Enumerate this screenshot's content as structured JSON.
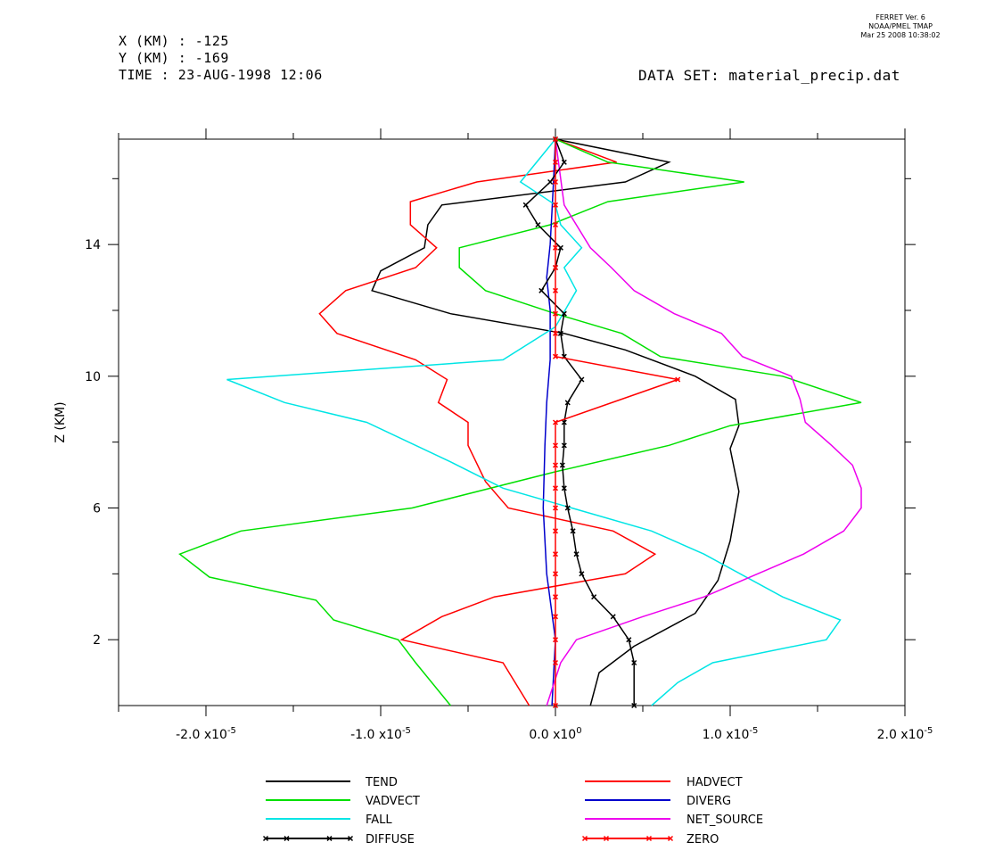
{
  "header": {
    "x_line": "X (KM) : -125",
    "y_line": "Y (KM) : -169",
    "time_line": "TIME : 23-AUG-1998 12:06",
    "dataset_line": "DATA SET: material_precip.dat"
  },
  "stamp": {
    "line1": "FERRET Ver. 6",
    "line2": "NOAA/PMEL TMAP",
    "line3": "Mar 25 2008 10:38:02"
  },
  "chart_data": {
    "type": "line",
    "title": "",
    "xlabel": "",
    "ylabel": "Z (KM)",
    "xlim": [
      -2.5e-05,
      2e-05
    ],
    "ylim": [
      0.0,
      17.2
    ],
    "x_ticks": [
      {
        "value": -2e-05,
        "mantissa": "-2.0",
        "exp": "-5"
      },
      {
        "value": -1e-05,
        "mantissa": "-1.0",
        "exp": "-5"
      },
      {
        "value": 0.0,
        "mantissa": "0.0",
        "exp": "0"
      },
      {
        "value": 1e-05,
        "mantissa": "1.0",
        "exp": "-5"
      },
      {
        "value": 2e-05,
        "mantissa": "2.0",
        "exp": "-5"
      }
    ],
    "y_ticks": [
      {
        "value": 2,
        "label": "2"
      },
      {
        "value": 6,
        "label": "6"
      },
      {
        "value": 10,
        "label": "10"
      },
      {
        "value": 14,
        "label": "14"
      }
    ],
    "x_minor_ticks": [
      -2.5e-05,
      -1.5e-05,
      -5e-06,
      5e-06,
      1.5e-05
    ],
    "y_minor_ticks": [
      4,
      8,
      12,
      16
    ],
    "grid": false,
    "legend_placement": "bottom",
    "series": [
      {
        "name": "TEND",
        "color": "#000000",
        "marker": false,
        "points": [
          [
            2e-06,
            0.0
          ],
          [
            2.5e-06,
            1.0
          ],
          [
            4.5e-06,
            1.8
          ],
          [
            8e-06,
            2.8
          ],
          [
            9.3e-06,
            3.8
          ],
          [
            1e-05,
            5.0
          ],
          [
            1.05e-05,
            6.5
          ],
          [
            1e-05,
            7.8
          ],
          [
            1.05e-05,
            8.5
          ],
          [
            1.03e-05,
            9.3
          ],
          [
            8e-06,
            10.0
          ],
          [
            4e-06,
            10.8
          ],
          [
            5e-07,
            11.3
          ],
          [
            -6e-06,
            11.9
          ],
          [
            -1.05e-05,
            12.6
          ],
          [
            -1e-05,
            13.2
          ],
          [
            -7.5e-06,
            13.9
          ],
          [
            -7.3e-06,
            14.6
          ],
          [
            -6.5e-06,
            15.2
          ],
          [
            4e-06,
            15.9
          ],
          [
            6.5e-06,
            16.5
          ],
          [
            0.0,
            17.2
          ]
        ]
      },
      {
        "name": "HADVECT",
        "color": "#ff0000",
        "marker": false,
        "points": [
          [
            -1.5e-06,
            0.0
          ],
          [
            -3e-06,
            1.3
          ],
          [
            -8.8e-06,
            2.0
          ],
          [
            -6.5e-06,
            2.7
          ],
          [
            -3.5e-06,
            3.3
          ],
          [
            4e-06,
            4.0
          ],
          [
            5.7e-06,
            4.6
          ],
          [
            3.3e-06,
            5.3
          ],
          [
            -2.7e-06,
            6.0
          ],
          [
            -4e-06,
            6.8
          ],
          [
            -5e-06,
            7.9
          ],
          [
            -5e-06,
            8.6
          ],
          [
            -6.7e-06,
            9.2
          ],
          [
            -6.2e-06,
            9.9
          ],
          [
            -8e-06,
            10.5
          ],
          [
            -1.25e-05,
            11.3
          ],
          [
            -1.35e-05,
            11.9
          ],
          [
            -1.2e-05,
            12.6
          ],
          [
            -8e-06,
            13.3
          ],
          [
            -6.8e-06,
            13.9
          ],
          [
            -8.3e-06,
            14.6
          ],
          [
            -8.3e-06,
            15.3
          ],
          [
            -4.5e-06,
            15.9
          ],
          [
            3.5e-06,
            16.5
          ],
          [
            0.0,
            17.2
          ]
        ]
      },
      {
        "name": "VADVECT",
        "color": "#00e000",
        "marker": false,
        "points": [
          [
            -6e-06,
            0.0
          ],
          [
            -8e-06,
            1.3
          ],
          [
            -9e-06,
            2.0
          ],
          [
            -1.27e-05,
            2.6
          ],
          [
            -1.37e-05,
            3.2
          ],
          [
            -1.98e-05,
            3.9
          ],
          [
            -2.15e-05,
            4.6
          ],
          [
            -1.8e-05,
            5.3
          ],
          [
            -8.2e-06,
            6.0
          ],
          [
            0.0,
            7.1
          ],
          [
            6.5e-06,
            7.9
          ],
          [
            1e-05,
            8.5
          ],
          [
            1.75e-05,
            9.2
          ],
          [
            1.3e-05,
            10.0
          ],
          [
            6e-06,
            10.6
          ],
          [
            3.8e-06,
            11.3
          ],
          [
            0.0,
            11.9
          ],
          [
            -4e-06,
            12.6
          ],
          [
            -5.5e-06,
            13.3
          ],
          [
            -5.5e-06,
            13.9
          ],
          [
            -3e-07,
            14.6
          ],
          [
            3e-06,
            15.3
          ],
          [
            1.08e-05,
            15.9
          ],
          [
            3e-06,
            16.5
          ],
          [
            0.0,
            17.2
          ]
        ]
      },
      {
        "name": "DIVERG",
        "color": "#0000cc",
        "marker": false,
        "points": [
          [
            -2e-07,
            0.0
          ],
          [
            0.0,
            2.0
          ],
          [
            -5e-07,
            4.0
          ],
          [
            -7e-07,
            6.0
          ],
          [
            -6e-07,
            7.9
          ],
          [
            -5e-07,
            9.2
          ],
          [
            -3e-07,
            10.5
          ],
          [
            -3e-07,
            12.0
          ],
          [
            -5e-07,
            13.0
          ],
          [
            -3e-07,
            14.0
          ],
          [
            -2e-07,
            15.0
          ],
          [
            -1e-07,
            16.0
          ],
          [
            0.0,
            17.2
          ]
        ]
      },
      {
        "name": "FALL",
        "color": "#00e5e5",
        "marker": false,
        "points": [
          [
            5.5e-06,
            0.0
          ],
          [
            7e-06,
            0.7
          ],
          [
            9e-06,
            1.3
          ],
          [
            1.55e-05,
            2.0
          ],
          [
            1.63e-05,
            2.6
          ],
          [
            1.3e-05,
            3.3
          ],
          [
            8.5e-06,
            4.6
          ],
          [
            5.5e-06,
            5.3
          ],
          [
            -3e-06,
            6.6
          ],
          [
            -6e-06,
            7.4
          ],
          [
            -1.08e-05,
            8.6
          ],
          [
            -1.55e-05,
            9.2
          ],
          [
            -1.88e-05,
            9.9
          ],
          [
            -3e-06,
            10.5
          ],
          [
            0.0,
            11.5
          ],
          [
            1.2e-06,
            12.6
          ],
          [
            5e-07,
            13.3
          ],
          [
            1.5e-06,
            13.9
          ],
          [
            3e-07,
            14.6
          ],
          [
            0.0,
            15.2
          ],
          [
            -2e-06,
            15.9
          ],
          [
            0.0,
            17.2
          ]
        ]
      },
      {
        "name": "NET_SOURCE",
        "color": "#ee00ee",
        "marker": false,
        "points": [
          [
            -5e-07,
            0.0
          ],
          [
            3e-07,
            1.3
          ],
          [
            1.2e-06,
            2.0
          ],
          [
            5e-06,
            2.7
          ],
          [
            8.5e-06,
            3.3
          ],
          [
            1.42e-05,
            4.6
          ],
          [
            1.65e-05,
            5.3
          ],
          [
            1.75e-05,
            6.0
          ],
          [
            1.75e-05,
            6.6
          ],
          [
            1.7e-05,
            7.3
          ],
          [
            1.58e-05,
            7.9
          ],
          [
            1.43e-05,
            8.6
          ],
          [
            1.4e-05,
            9.3
          ],
          [
            1.35e-05,
            10.0
          ],
          [
            1.07e-05,
            10.6
          ],
          [
            9.5e-06,
            11.3
          ],
          [
            6.8e-06,
            11.9
          ],
          [
            4.5e-06,
            12.6
          ],
          [
            3.2e-06,
            13.3
          ],
          [
            2e-06,
            13.9
          ],
          [
            5e-07,
            15.2
          ],
          [
            0.0,
            17.2
          ]
        ]
      },
      {
        "name": "DIFFUSE",
        "color": "#000000",
        "marker": true,
        "points": [
          [
            4.5e-06,
            0.0
          ],
          [
            4.5e-06,
            1.3
          ],
          [
            4.2e-06,
            2.0
          ],
          [
            3.3e-06,
            2.7
          ],
          [
            2.2e-06,
            3.3
          ],
          [
            1.5e-06,
            4.0
          ],
          [
            1.2e-06,
            4.6
          ],
          [
            1e-06,
            5.3
          ],
          [
            7e-07,
            6.0
          ],
          [
            5e-07,
            6.6
          ],
          [
            4e-07,
            7.3
          ],
          [
            5e-07,
            7.9
          ],
          [
            5e-07,
            8.6
          ],
          [
            7e-07,
            9.2
          ],
          [
            1.5e-06,
            9.9
          ],
          [
            5e-07,
            10.6
          ],
          [
            3e-07,
            11.3
          ],
          [
            5e-07,
            11.9
          ],
          [
            -8e-07,
            12.6
          ],
          [
            0.0,
            13.3
          ],
          [
            3e-07,
            13.9
          ],
          [
            -1e-06,
            14.6
          ],
          [
            -1.7e-06,
            15.2
          ],
          [
            -3e-07,
            15.9
          ],
          [
            5e-07,
            16.5
          ],
          [
            0.0,
            17.2
          ]
        ]
      },
      {
        "name": "ZERO",
        "color": "#ff0000",
        "marker": true,
        "points": [
          [
            0.0,
            0.0
          ],
          [
            0.0,
            1.3
          ],
          [
            0.0,
            2.0
          ],
          [
            0.0,
            2.7
          ],
          [
            0.0,
            3.3
          ],
          [
            0.0,
            4.0
          ],
          [
            0.0,
            4.6
          ],
          [
            0.0,
            5.3
          ],
          [
            0.0,
            6.0
          ],
          [
            0.0,
            6.6
          ],
          [
            0.0,
            7.3
          ],
          [
            0.0,
            7.9
          ],
          [
            0.0,
            8.6
          ],
          [
            7e-06,
            9.9
          ],
          [
            0.0,
            10.6
          ],
          [
            0.0,
            11.3
          ],
          [
            0.0,
            11.9
          ],
          [
            0.0,
            12.6
          ],
          [
            0.0,
            13.3
          ],
          [
            0.0,
            13.9
          ],
          [
            0.0,
            14.6
          ],
          [
            0.0,
            15.2
          ],
          [
            0.0,
            15.9
          ],
          [
            0.0,
            16.5
          ],
          [
            0.0,
            17.2
          ]
        ]
      }
    ]
  }
}
